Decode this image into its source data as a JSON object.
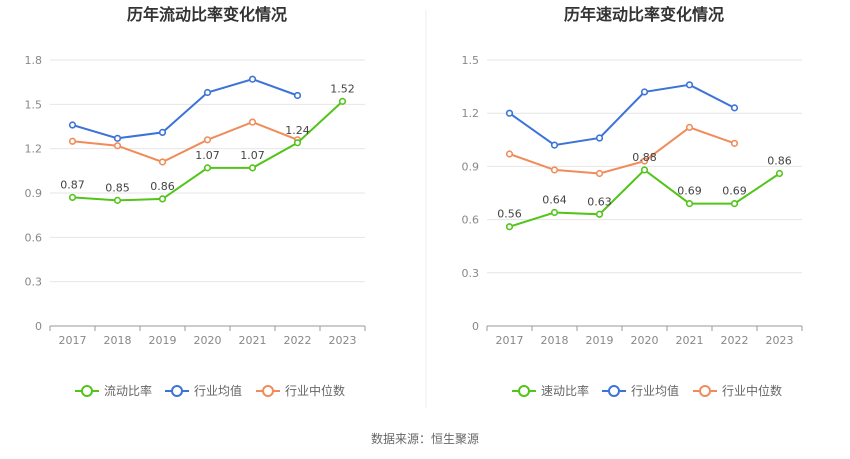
{
  "source_text": "数据来源：恒生聚源",
  "chart_data": [
    {
      "type": "line",
      "title": "历年流动比率变化情况",
      "categories": [
        "2017",
        "2018",
        "2019",
        "2020",
        "2021",
        "2022",
        "2023"
      ],
      "ylim": [
        0,
        1.8
      ],
      "yticks": [
        "0",
        "0.3",
        "0.6",
        "0.9",
        "1.2",
        "1.5",
        "1.8"
      ],
      "grid": true,
      "legend_position": "bottom",
      "series": [
        {
          "name": "流动比率",
          "color": "#52c41a",
          "labeled": true,
          "values": [
            0.87,
            0.85,
            0.86,
            1.07,
            1.07,
            1.24,
            1.52
          ]
        },
        {
          "name": "行业均值",
          "color": "#3b73d9",
          "labeled": false,
          "values": [
            1.36,
            1.27,
            1.31,
            1.58,
            1.67,
            1.56,
            null
          ]
        },
        {
          "name": "行业中位数",
          "color": "#f08c5a",
          "labeled": false,
          "values": [
            1.25,
            1.22,
            1.11,
            1.26,
            1.38,
            1.26,
            null
          ]
        }
      ]
    },
    {
      "type": "line",
      "title": "历年速动比率变化情况",
      "categories": [
        "2017",
        "2018",
        "2019",
        "2020",
        "2021",
        "2022",
        "2023"
      ],
      "ylim": [
        0,
        1.5
      ],
      "yticks": [
        "0",
        "0.3",
        "0.6",
        "0.9",
        "1.2",
        "1.5"
      ],
      "grid": true,
      "legend_position": "bottom",
      "series": [
        {
          "name": "速动比率",
          "color": "#52c41a",
          "labeled": true,
          "values": [
            0.56,
            0.64,
            0.63,
            0.88,
            0.69,
            0.69,
            0.86
          ]
        },
        {
          "name": "行业均值",
          "color": "#3b73d9",
          "labeled": false,
          "values": [
            1.2,
            1.02,
            1.06,
            1.32,
            1.36,
            1.23,
            null
          ]
        },
        {
          "name": "行业中位数",
          "color": "#f08c5a",
          "labeled": false,
          "values": [
            0.97,
            0.88,
            0.86,
            0.93,
            1.12,
            1.03,
            null
          ]
        }
      ]
    }
  ]
}
